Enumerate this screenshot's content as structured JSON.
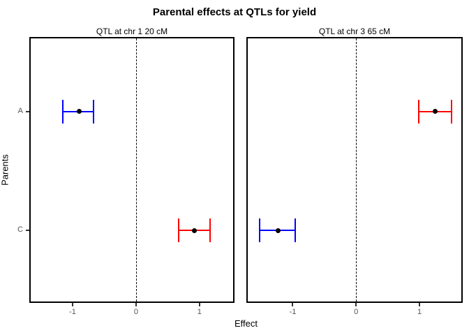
{
  "chart_data": {
    "type": "scatter",
    "mark": "point-with-horizontal-error-bars",
    "title": "Parental effects at QTLs for yield",
    "xlabel": "Effect",
    "ylabel": "Parents",
    "categories": [
      "A",
      "C"
    ],
    "x_ticks": [
      -1,
      0,
      1
    ],
    "grid": false,
    "legend": "none",
    "reference_line": {
      "x": 0,
      "style": "dashed",
      "color": "#000000"
    },
    "colors": {
      "blue": "#0000FF",
      "red": "#FF0000",
      "point": "#000000",
      "axis_text": "#555555",
      "text": "#000000",
      "panel_border": "#000000"
    },
    "panels": [
      {
        "label": "QTL at chr 1 20 cM",
        "xlim": [
          -1.66,
          1.53
        ],
        "points": [
          {
            "parent": "A",
            "estimate": -0.9,
            "ci_low": -1.15,
            "ci_high": -0.67,
            "color": "blue"
          },
          {
            "parent": "C",
            "estimate": 0.92,
            "ci_low": 0.67,
            "ci_high": 1.17,
            "color": "red"
          }
        ]
      },
      {
        "label": "QTL at chr 3 65 cM",
        "xlim": [
          -1.71,
          1.66
        ],
        "points": [
          {
            "parent": "A",
            "estimate": 1.25,
            "ci_low": 0.99,
            "ci_high": 1.51,
            "color": "red"
          },
          {
            "parent": "C",
            "estimate": -1.23,
            "ci_low": -1.52,
            "ci_high": -0.96,
            "color": "blue"
          }
        ]
      }
    ]
  }
}
